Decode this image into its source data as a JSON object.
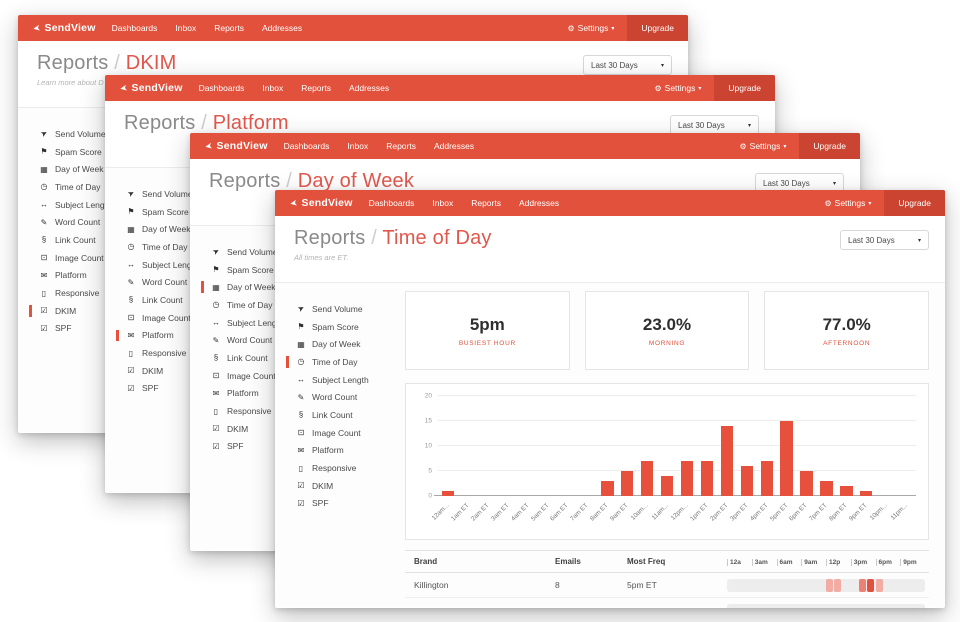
{
  "app": {
    "brand": "SendView",
    "nav_items": [
      "Dashboards",
      "Inbox",
      "Reports",
      "Addresses"
    ],
    "settings_label": "Settings",
    "upgrade_label": "Upgrade"
  },
  "page": {
    "title_prefix": "Reports",
    "separator": "/"
  },
  "filters": {
    "period": "Last 30 Days"
  },
  "icons": {
    "paper-plane": "➤",
    "thumbs-down": "⚑",
    "calendar": "▦",
    "clock": "◷",
    "arrows-h": "↔",
    "pencil": "✎",
    "paperclip": "§",
    "image": "⊡",
    "envelope": "✉",
    "mobile": "▯",
    "check-square": "☑",
    "gear": "⚙",
    "caret-down": "▾"
  },
  "sidebar": {
    "items": [
      {
        "label": "Send Volume",
        "icon": "paper-plane"
      },
      {
        "label": "Spam Score",
        "icon": "thumbs-down"
      },
      {
        "label": "Day of Week",
        "icon": "calendar"
      },
      {
        "label": "Time of Day",
        "icon": "clock"
      },
      {
        "label": "Subject Length",
        "icon": "arrows-h"
      },
      {
        "label": "Word Count",
        "icon": "pencil"
      },
      {
        "label": "Link Count",
        "icon": "paperclip"
      },
      {
        "label": "Image Count",
        "icon": "image"
      },
      {
        "label": "Platform",
        "icon": "envelope"
      },
      {
        "label": "Responsive",
        "icon": "mobile"
      },
      {
        "label": "DKIM",
        "icon": "check-square"
      },
      {
        "label": "SPF",
        "icon": "check-square"
      }
    ]
  },
  "windows": [
    {
      "title_section": "DKIM",
      "subtitle": "Learn more about D",
      "active": "DKIM"
    },
    {
      "title_section": "Platform",
      "subtitle": "",
      "active": "Platform"
    },
    {
      "title_section": "Day of Week",
      "subtitle": "",
      "active": "Day of Week"
    },
    {
      "title_section": "Time of Day",
      "subtitle": "All times are ET.",
      "active": "Time of Day"
    }
  ],
  "stats": [
    {
      "value": "5pm",
      "label": "BUSIEST HOUR"
    },
    {
      "value": "23.0%",
      "label": "MORNING"
    },
    {
      "value": "77.0%",
      "label": "AFTERNOON"
    }
  ],
  "chart_data": {
    "type": "bar",
    "categories": [
      "12am ET",
      "1am ET",
      "2am ET",
      "3am ET",
      "4am ET",
      "5am ET",
      "6am ET",
      "7am ET",
      "8am ET",
      "9am ET",
      "10am ET",
      "11am ET",
      "12pm ET",
      "1pm ET",
      "2pm ET",
      "3pm ET",
      "4pm ET",
      "5pm ET",
      "6pm ET",
      "7pm ET",
      "8pm ET",
      "9pm ET",
      "10pm ET",
      "11pm ET"
    ],
    "tick_labels": [
      "12am...",
      "1am ET",
      "2am ET",
      "3am ET",
      "4am ET",
      "5am ET",
      "6am ET",
      "7am ET",
      "8am ET",
      "9am ET",
      "10am...",
      "11am...",
      "12pm...",
      "1pm ET",
      "2pm ET",
      "3pm ET",
      "4pm ET",
      "5pm ET",
      "6pm ET",
      "7pm ET",
      "8pm ET",
      "9pm ET",
      "10pm...",
      "11pm..."
    ],
    "values": [
      1,
      0,
      0,
      0,
      0,
      0,
      0,
      0,
      3,
      5,
      7,
      4,
      7,
      7,
      14,
      6,
      7,
      15,
      5,
      3,
      2,
      1,
      0,
      0
    ],
    "title": "",
    "xlabel": "",
    "ylabel": "",
    "ylim": [
      0,
      20
    ],
    "yticks": [
      0,
      5,
      10,
      15,
      20
    ],
    "grid": true,
    "legend": false
  },
  "table": {
    "columns": [
      "Brand",
      "Emails",
      "Most Freq"
    ],
    "heat_scale_labels": [
      "12a",
      "3am",
      "6am",
      "9am",
      "12p",
      "3pm",
      "6pm",
      "9pm"
    ],
    "rows": [
      {
        "brand": "Killington",
        "emails": "8",
        "most_freq": "5pm ET",
        "heat_cells": [
          {
            "hour": 12,
            "level": 1
          },
          {
            "hour": 13,
            "level": 1
          },
          {
            "hour": 16,
            "level": 2
          },
          {
            "hour": 17,
            "level": 3
          },
          {
            "hour": 18,
            "level": 1
          }
        ]
      },
      {
        "brand": "",
        "emails": "",
        "most_freq": "",
        "heat_cells": []
      }
    ]
  },
  "colors": {
    "navbar": "#e1513c",
    "navbar_dark": "#ca4431",
    "accent": "#e2574c",
    "bar": "#e8503e",
    "heat_track": "#ededed",
    "heat_levels": [
      "#f2aca4",
      "#ea8174",
      "#df5241"
    ]
  }
}
